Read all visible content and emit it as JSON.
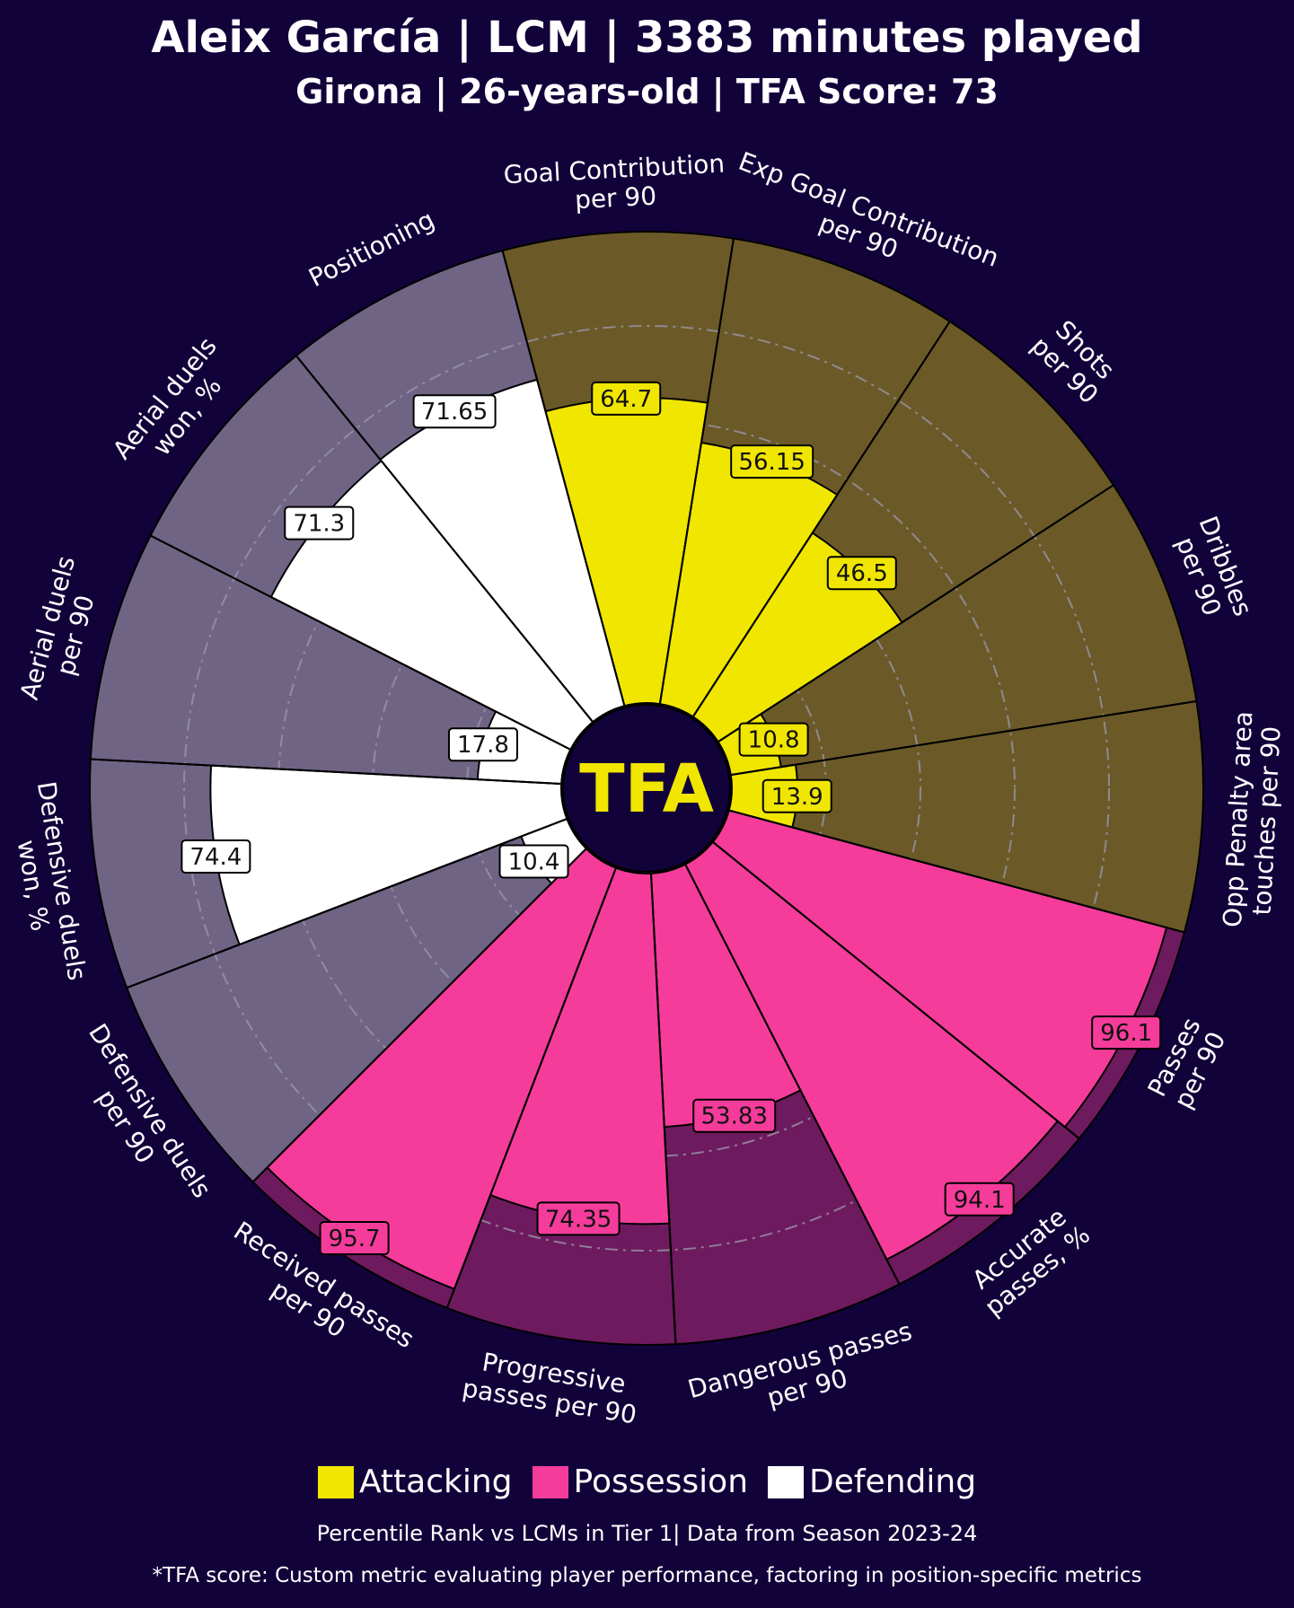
{
  "title": "Aleix García | LCM | 3383 minutes played",
  "subtitle": "Girona | 26-years-old | TFA Score: 73",
  "center_logo": "TFA",
  "legend": [
    {
      "label": "Attacking",
      "color": "#f0e600"
    },
    {
      "label": "Possession",
      "color": "#f53c9b"
    },
    {
      "label": "Defending",
      "color": "#ffffff"
    }
  ],
  "footnote_1": "Percentile Rank vs LCMs in Tier 1| Data from Season 2023-24",
  "footnote_2": "*TFA score: Custom metric evaluating player performance, factoring in position-specific metrics",
  "colors": {
    "background": "#12023a",
    "attacking_fill": "#f0e600",
    "attacking_bg": "#6b5a28",
    "possession_fill": "#f53c9b",
    "possession_bg": "#6e1a5e",
    "defending_fill": "#ffffff",
    "defending_bg": "#706485"
  },
  "chart_data": {
    "type": "radial_bar",
    "title": "Percentile Rank vs LCMs in Tier 1",
    "range": [
      0,
      100
    ],
    "gridlines": [
      20,
      40,
      60,
      80
    ],
    "metrics": [
      {
        "label": "Goal Contribution\nper 90",
        "value": 64.7,
        "group": "Attacking"
      },
      {
        "label": "Exp Goal Contribution\nper 90",
        "value": 56.15,
        "group": "Attacking"
      },
      {
        "label": "Shots\nper 90",
        "value": 46.5,
        "group": "Attacking"
      },
      {
        "label": "Dribbles\nper 90",
        "value": 10.8,
        "group": "Attacking"
      },
      {
        "label": "Opp Penalty area\ntouches per 90",
        "value": 13.9,
        "group": "Attacking"
      },
      {
        "label": "Passes\nper 90",
        "value": 96.1,
        "group": "Possession"
      },
      {
        "label": "Accurate\npasses, %",
        "value": 94.1,
        "group": "Possession"
      },
      {
        "label": "Dangerous passes\nper 90",
        "value": 53.83,
        "group": "Possession"
      },
      {
        "label": "Progressive\npasses per 90",
        "value": 74.35,
        "group": "Possession"
      },
      {
        "label": "Received passes\nper 90",
        "value": 95.7,
        "group": "Possession"
      },
      {
        "label": "Defensive duels\nper 90",
        "value": 10.4,
        "group": "Defending"
      },
      {
        "label": "Defensive duels\nwon, %",
        "value": 74.4,
        "group": "Defending"
      },
      {
        "label": "Aerial duels\nper 90",
        "value": 17.8,
        "group": "Defending"
      },
      {
        "label": "Aerial duels\nwon, %",
        "value": 71.3,
        "group": "Defending"
      },
      {
        "label": "Positioning",
        "value": 71.65,
        "group": "Defending"
      }
    ]
  }
}
